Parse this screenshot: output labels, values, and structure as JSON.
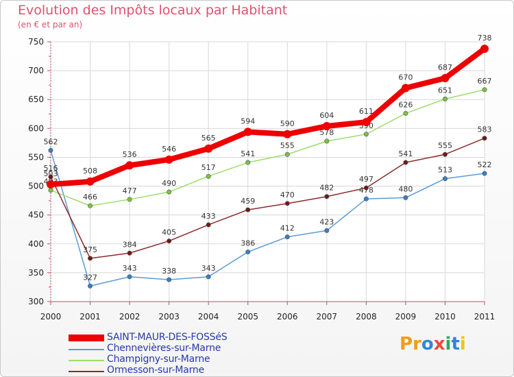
{
  "header": {
    "title": "Evolution des Impôts locaux par Habitant",
    "subtitle": "(en € et par an)"
  },
  "logo": {
    "letters": [
      "P",
      "r",
      "o",
      "x",
      "i",
      "t",
      "i"
    ],
    "colors": [
      "#f39c12",
      "#f39c12",
      "#2e86de",
      "#e74c3c",
      "#27ae60",
      "#2e86de",
      "#f1c40f"
    ]
  },
  "chart_data": {
    "type": "line",
    "title": "Evolution des Impôts locaux par Habitant",
    "subtitle": "(en € et par an)",
    "xlabel": "",
    "ylabel": "",
    "x": [
      "2000",
      "2001",
      "2002",
      "2003",
      "2004",
      "2005",
      "2006",
      "2007",
      "2008",
      "2009",
      "2010",
      "2011"
    ],
    "ylim": [
      300,
      750
    ],
    "yticks": [
      "300",
      "350",
      "400",
      "450",
      "500",
      "550",
      "600",
      "650",
      "700",
      "750"
    ],
    "grid": true,
    "legend_position": "bottom-left",
    "series": [
      {
        "name": "Chennevières-sur-Marne",
        "color": "#5b9bd5",
        "point_color": "#3a7fc4",
        "width": "thin",
        "values": [
          562,
          327,
          343,
          338,
          343,
          386,
          412,
          423,
          478,
          480,
          513,
          522
        ],
        "labels": [
          "562",
          "327",
          "343",
          "338",
          "343",
          "386",
          "412",
          "423",
          "478",
          "480",
          "513",
          "522"
        ]
      },
      {
        "name": "Champigny-sur-Marne",
        "color": "#9fdc6c",
        "point_color": "#7cc143",
        "width": "thin",
        "values": [
          493,
          466,
          477,
          490,
          517,
          541,
          555,
          578,
          590,
          626,
          651,
          667
        ],
        "labels": [
          "493",
          "466",
          "477",
          "490",
          "517",
          "541",
          "555",
          "578",
          "590",
          "626",
          "651",
          "667"
        ]
      },
      {
        "name": "Ormesson-sur-Marne",
        "color": "#8b2a2a",
        "point_color": "#6e1a1a",
        "width": "thin",
        "values": [
          516,
          375,
          384,
          405,
          433,
          459,
          470,
          482,
          497,
          541,
          555,
          583
        ],
        "labels": [
          "516",
          "375",
          "384",
          "405",
          "433",
          "459",
          "470",
          "482",
          "497",
          "541",
          "555",
          "583"
        ]
      },
      {
        "name": "SAINT-MAUR-DES-FOSSéS",
        "color": "#ee0000",
        "point_color": "#ee0000",
        "width": "thick",
        "values": [
          503,
          508,
          536,
          546,
          565,
          594,
          590,
          604,
          611,
          670,
          687,
          738
        ],
        "labels": [
          "503",
          "508",
          "536",
          "546",
          "565",
          "594",
          "590",
          "604",
          "611",
          "670",
          "687",
          "738"
        ]
      }
    ],
    "legend": [
      {
        "name": "SAINT-MAUR-DES-FOSSéS",
        "color": "#ee0000",
        "width": "thick"
      },
      {
        "name": "Chennevières-sur-Marne",
        "color": "#5b9bd5",
        "width": "thin"
      },
      {
        "name": "Champigny-sur-Marne",
        "color": "#9fdc6c",
        "width": "thin"
      },
      {
        "name": "Ormesson-sur-Marne",
        "color": "#8b2a2a",
        "width": "thin"
      }
    ]
  }
}
